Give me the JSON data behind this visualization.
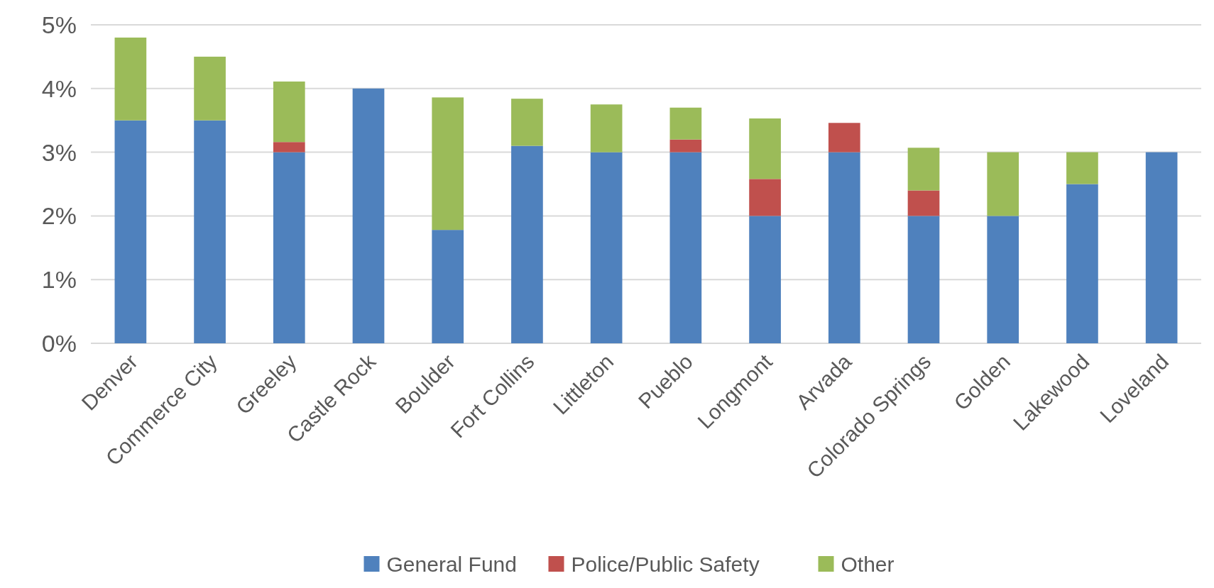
{
  "chart_data": {
    "type": "bar",
    "stacked": true,
    "categories": [
      "Denver",
      "Commerce City",
      "Greeley",
      "Castle Rock",
      "Boulder",
      "Fort Collins",
      "Littleton",
      "Pueblo",
      "Longmont",
      "Arvada",
      "Colorado Springs",
      "Golden",
      "Lakewood",
      "Loveland"
    ],
    "series": [
      {
        "name": "General Fund",
        "color": "#4f81bd",
        "values": [
          3.5,
          3.5,
          3.0,
          4.0,
          1.78,
          3.1,
          3.0,
          3.0,
          2.0,
          3.0,
          2.0,
          2.0,
          2.5,
          3.0
        ]
      },
      {
        "name": "Police/Public Safety",
        "color": "#c0504d",
        "values": [
          null,
          null,
          0.16,
          null,
          null,
          null,
          null,
          0.2,
          0.58,
          0.46,
          0.4,
          null,
          null,
          null
        ]
      },
      {
        "name": "Other",
        "color": "#9bbb59",
        "values": [
          1.3,
          1.0,
          0.95,
          null,
          2.08,
          0.74,
          0.75,
          0.5,
          0.95,
          null,
          0.67,
          1.0,
          0.5,
          null
        ]
      }
    ],
    "ylim": [
      0,
      5
    ],
    "yticks": [
      {
        "value": 0,
        "label": "0%"
      },
      {
        "value": 1,
        "label": "1%"
      },
      {
        "value": 2,
        "label": "2%"
      },
      {
        "value": 3,
        "label": "3%"
      },
      {
        "value": 4,
        "label": "4%"
      },
      {
        "value": 5,
        "label": "5%"
      }
    ],
    "grid": "y",
    "legend": "bottom"
  }
}
